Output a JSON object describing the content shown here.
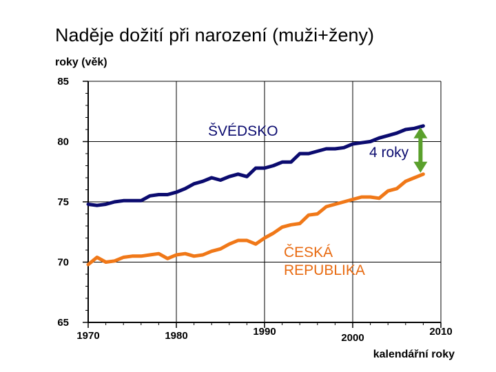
{
  "title": "Naděje dožití při narození (muži+ženy)",
  "ylabel": "roky (věk)",
  "xlabel": "kalendářní roky",
  "colors": {
    "sweden": "#0b0b6f",
    "czech": "#f07818",
    "arrow": "#5aa02c",
    "grid": "#000000"
  },
  "chart_data": {
    "type": "line",
    "title": "Naděje dožití při narození (muži+ženy)",
    "xlabel": "kalendářní roky",
    "ylabel": "roky (věk)",
    "xlim": [
      1970,
      2010
    ],
    "ylim": [
      65,
      85
    ],
    "xticks": [
      1970,
      1980,
      1990,
      2000,
      2010
    ],
    "yticks": [
      65,
      70,
      75,
      80,
      85
    ],
    "grid": true,
    "x": [
      1970,
      1971,
      1972,
      1973,
      1974,
      1975,
      1976,
      1977,
      1978,
      1979,
      1980,
      1981,
      1982,
      1983,
      1984,
      1985,
      1986,
      1987,
      1988,
      1989,
      1990,
      1991,
      1992,
      1993,
      1994,
      1995,
      1996,
      1997,
      1998,
      1999,
      2000,
      2001,
      2002,
      2003,
      2004,
      2005,
      2006,
      2007,
      2008
    ],
    "series": [
      {
        "name": "ŠVÉDSKO",
        "label": "ŠVÉDSKO",
        "values": [
          74.8,
          74.7,
          74.8,
          75.0,
          75.1,
          75.1,
          75.1,
          75.5,
          75.6,
          75.6,
          75.8,
          76.1,
          76.5,
          76.7,
          77.0,
          76.8,
          77.1,
          77.3,
          77.1,
          77.8,
          77.8,
          78.0,
          78.3,
          78.3,
          79.0,
          79.0,
          79.2,
          79.4,
          79.4,
          79.5,
          79.8,
          79.9,
          80.0,
          80.3,
          80.5,
          80.7,
          81.0,
          81.1,
          81.3
        ]
      },
      {
        "name": "ČESKÁ REPUBLIKA",
        "label": "ČESKÁ\nREPUBLIKA",
        "values": [
          69.8,
          70.4,
          70.0,
          70.1,
          70.4,
          70.5,
          70.5,
          70.6,
          70.7,
          70.3,
          70.6,
          70.7,
          70.5,
          70.6,
          70.9,
          71.1,
          71.5,
          71.8,
          71.8,
          71.5,
          72.0,
          72.4,
          72.9,
          73.1,
          73.2,
          73.9,
          74.0,
          74.6,
          74.8,
          75.0,
          75.2,
          75.4,
          75.4,
          75.3,
          75.9,
          76.1,
          76.7,
          77.0,
          77.3
        ]
      }
    ],
    "annotations": [
      {
        "text": "4 roky",
        "type": "double-arrow",
        "x": 2008,
        "y_from": 77.3,
        "y_to": 81.3
      }
    ]
  }
}
